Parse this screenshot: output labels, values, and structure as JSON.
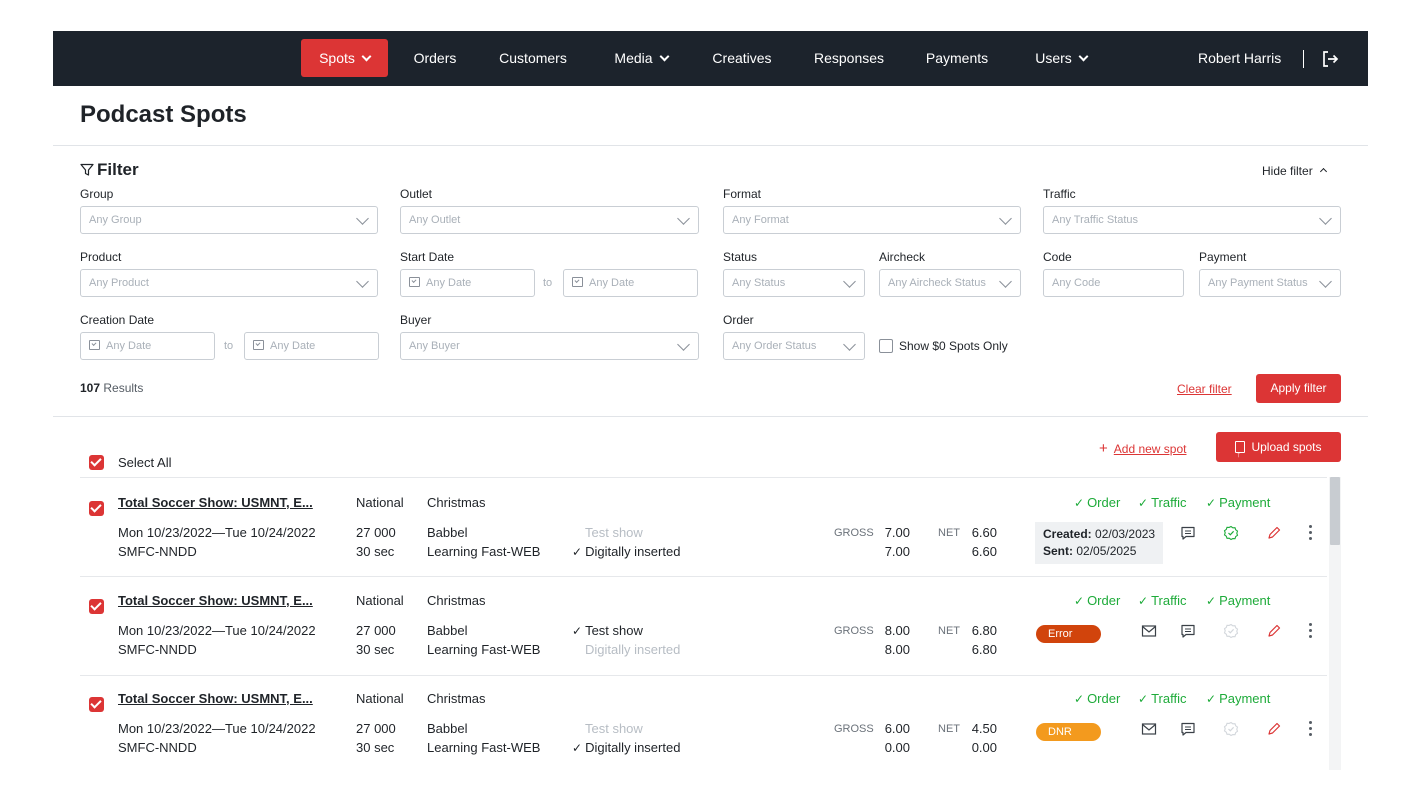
{
  "nav": {
    "items": [
      {
        "label": "Spots",
        "dropdown": true,
        "active": true
      },
      {
        "label": "Orders",
        "dropdown": false
      },
      {
        "label": "Customers",
        "dropdown": false
      },
      {
        "label": "Media",
        "dropdown": true
      },
      {
        "label": "Creatives",
        "dropdown": false
      },
      {
        "label": "Responses",
        "dropdown": false
      },
      {
        "label": "Payments",
        "dropdown": false
      },
      {
        "label": "Users",
        "dropdown": true
      }
    ],
    "user_name": "Robert Harris",
    "logout_icon": "logout-icon"
  },
  "page": {
    "title": "Podcast Spots"
  },
  "filter": {
    "title": "Filter",
    "hide_label": "Hide filter",
    "group": {
      "label": "Group",
      "placeholder": "Any Group"
    },
    "outlet": {
      "label": "Outlet",
      "placeholder": "Any Outlet"
    },
    "format": {
      "label": "Format",
      "placeholder": "Any Format"
    },
    "traffic": {
      "label": "Traffic",
      "placeholder": "Any Traffic Status"
    },
    "product": {
      "label": "Product",
      "placeholder": "Any Product"
    },
    "start_date": {
      "label": "Start Date",
      "from_placeholder": "Any Date",
      "to_label": "to",
      "to_placeholder": "Any Date"
    },
    "status": {
      "label": "Status",
      "placeholder": "Any Status"
    },
    "aircheck": {
      "label": "Aircheck",
      "placeholder": "Any Aircheck Status"
    },
    "code": {
      "label": "Code",
      "placeholder": "Any Code"
    },
    "payment": {
      "label": "Payment",
      "placeholder": "Any Payment Status"
    },
    "creation_date": {
      "label": "Creation Date",
      "from_placeholder": "Any Date",
      "to_label": "to",
      "to_placeholder": "Any Date"
    },
    "buyer": {
      "label": "Buyer",
      "placeholder": "Any Buyer"
    },
    "order": {
      "label": "Order",
      "placeholder": "Any Order Status"
    },
    "show_zero": "Show $0 Spots Only",
    "results_count": "107",
    "results_label": "Results",
    "clear_label": "Clear filter",
    "apply_label": "Apply filter"
  },
  "list": {
    "add_new_label": "Add new spot",
    "upload_label": "Upload spots",
    "select_all_label": "Select All",
    "gross_label": "GROSS",
    "net_label": "NET",
    "rows": [
      {
        "title": "Total Soccer Show: USMNT, E...",
        "dates": "Mon 10/23/2022—Tue 10/24/2022",
        "code": "SMFC-NNDD",
        "type": "National",
        "impressions": "27 000",
        "duration": "30 sec",
        "campaign": "Christmas",
        "advertiser": "Babbel",
        "creative": "Learning Fast-WEB",
        "test_show": "Test show",
        "test_show_checked": false,
        "digital": "Digitally inserted",
        "digital_checked": true,
        "gross_1": "7.00",
        "gross_2": "7.00",
        "net_1": "6.60",
        "net_2": "6.60",
        "order_label": "Order",
        "traffic_label": "Traffic",
        "payment_label": "Payment",
        "created_label": "Created:",
        "created_value": "02/03/2023",
        "sent_label": "Sent:",
        "sent_value": "02/05/2025"
      },
      {
        "title": "Total Soccer Show: USMNT, E...",
        "dates": "Mon 10/23/2022—Tue 10/24/2022",
        "code": "SMFC-NNDD",
        "type": "National",
        "impressions": "27 000",
        "duration": "30 sec",
        "campaign": "Christmas",
        "advertiser": "Babbel",
        "creative": "Learning Fast-WEB",
        "test_show": "Test show",
        "test_show_checked": true,
        "digital": "Digitally inserted",
        "digital_checked": false,
        "gross_1": "8.00",
        "gross_2": "8.00",
        "net_1": "6.80",
        "net_2": "6.80",
        "order_label": "Order",
        "traffic_label": "Traffic",
        "payment_label": "Payment",
        "status_badge": "Error"
      },
      {
        "title": "Total Soccer Show: USMNT, E...",
        "dates": "Mon 10/23/2022—Tue 10/24/2022",
        "code": "SMFC-NNDD",
        "type": "National",
        "impressions": "27 000",
        "duration": "30 sec",
        "campaign": "Christmas",
        "advertiser": "Babbel",
        "creative": "Learning Fast-WEB",
        "test_show": "Test show",
        "test_show_checked": false,
        "digital": "Digitally inserted",
        "digital_checked": true,
        "gross_1": "6.00",
        "gross_2": "0.00",
        "net_1": "4.50",
        "net_2": "0.00",
        "order_label": "Order",
        "traffic_label": "Traffic",
        "payment_label": "Payment",
        "status_badge": "DNR"
      }
    ]
  },
  "colors": {
    "nav_bg": "#1c232c",
    "accent": "#dc3535",
    "success": "#1eab3a",
    "error_badge": "#d1440c",
    "dnr_badge": "#f39a1e"
  }
}
